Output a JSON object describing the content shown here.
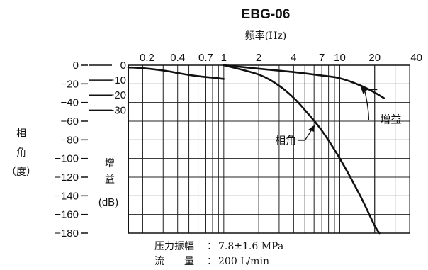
{
  "chart_data": {
    "type": "line",
    "title": "EBG-06",
    "xlabel": "频率(Hz)",
    "x_scale": "log",
    "xlim": [
      0.15,
      40
    ],
    "x_ticks": [
      "0.2",
      "0.4",
      "0.7",
      "1",
      "2",
      "4",
      "7",
      "10",
      "20",
      "40"
    ],
    "x_tick_values": [
      0.2,
      0.4,
      0.7,
      1,
      2,
      4,
      7,
      10,
      20,
      40
    ],
    "grid": true,
    "phase_axis": {
      "label": [
        "相",
        "角",
        "（度）"
      ],
      "ylim": [
        -180,
        0
      ],
      "ticks": [
        "0",
        "−20",
        "−40",
        "−60",
        "−80",
        "−100",
        "−120",
        "−140",
        "−160",
        "−180"
      ],
      "tick_values": [
        0,
        -20,
        -40,
        -60,
        -80,
        -100,
        -120,
        -140,
        -160,
        -180
      ]
    },
    "gain_axis": {
      "label": [
        "增",
        "益"
      ],
      "unit": "(dB)",
      "ylim": [
        -36,
        0
      ],
      "ticks": [
        "0",
        "−10",
        "−20",
        "−30"
      ],
      "tick_values": [
        0,
        -10,
        -20,
        -30
      ]
    },
    "series": [
      {
        "name": "增益",
        "axis": "gain",
        "x": [
          0.15,
          0.2,
          0.3,
          0.4,
          0.5,
          0.6,
          0.7,
          0.85,
          1.0
        ],
        "y": [
          -1.5,
          -2.0,
          -3.5,
          -5.2,
          -6.5,
          -7.3,
          -7.9,
          -8.5,
          -9.2
        ]
      },
      {
        "name": "增益",
        "axis": "gain",
        "x": [
          1.0,
          2.0,
          4.0,
          7.0,
          10.0,
          15.0,
          20.0,
          24.0
        ],
        "y": [
          0,
          -2.3,
          -4.6,
          -6.9,
          -8.7,
          -13.5,
          -18.3,
          -22.0
        ]
      },
      {
        "name": "相角",
        "axis": "phase",
        "x": [
          1.0,
          2.0,
          3.0,
          4.0,
          5.0,
          7.0,
          10.0,
          15.0,
          20.0,
          22.0
        ],
        "y": [
          0,
          -10,
          -22,
          -35,
          -48,
          -70,
          -100,
          -140,
          -172,
          -180
        ]
      }
    ],
    "annotations": [
      {
        "text": "增益",
        "x": 14,
        "series": "增益"
      },
      {
        "text": "相角",
        "x": 6,
        "series": "相角"
      }
    ],
    "notes": [
      {
        "label": "压力振幅",
        "value": "7.8±1.6 MPa"
      },
      {
        "label": "流　　量",
        "value": "200 L/min"
      }
    ]
  }
}
